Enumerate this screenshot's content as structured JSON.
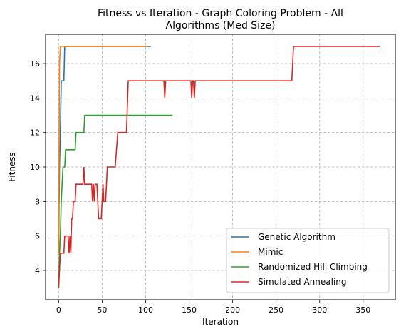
{
  "chart_data": {
    "type": "line",
    "title": "Fitness vs Iteration - Graph Coloring Problem - All",
    "subtitle": "Algorithms (Med Size)",
    "xlabel": "Iteration",
    "ylabel": "Fitness",
    "xlim": [
      -15,
      387
    ],
    "ylim": [
      2.3,
      17.7
    ],
    "xticks": [
      0,
      50,
      100,
      150,
      200,
      250,
      300,
      350
    ],
    "yticks": [
      4,
      6,
      8,
      10,
      12,
      14,
      16
    ],
    "grid": true,
    "legend_position": "lower-right",
    "series": [
      {
        "name": "Genetic Algorithm",
        "color": "#1f77b4",
        "x": [
          0,
          1,
          2,
          3,
          4,
          5,
          6,
          7,
          8,
          20,
          40,
          60,
          80,
          100,
          106
        ],
        "y": [
          5,
          10,
          12,
          15,
          15,
          15,
          15,
          17,
          17,
          17,
          17,
          17,
          17,
          17,
          17
        ]
      },
      {
        "name": "Mimic",
        "color": "#ff7f0e",
        "x": [
          0,
          1,
          2,
          3,
          10,
          30,
          50,
          70,
          90,
          102
        ],
        "y": [
          5,
          16,
          17,
          17,
          17,
          17,
          17,
          17,
          17,
          17
        ]
      },
      {
        "name": "Randomized Hill Climbing",
        "color": "#2ca02c",
        "x": [
          0,
          1,
          2,
          3,
          4,
          5,
          6,
          7,
          8,
          9,
          10,
          11,
          15,
          19,
          20,
          21,
          25,
          29,
          30,
          31,
          50,
          70,
          90,
          110,
          131
        ],
        "y": [
          3,
          5,
          6,
          8,
          9,
          10,
          10,
          10,
          11,
          11,
          11,
          11,
          11,
          11,
          12,
          12,
          12,
          12,
          13,
          13,
          13,
          13,
          13,
          13,
          13
        ],
        "step": true
      },
      {
        "name": "Simulated Annealing",
        "color": "#d62728",
        "x": [
          0,
          1,
          2,
          3,
          4,
          5,
          6,
          7,
          8,
          9,
          10,
          11,
          12,
          13,
          14,
          15,
          16,
          17,
          18,
          19,
          20,
          22,
          24,
          26,
          28,
          29,
          30,
          32,
          34,
          36,
          38,
          39,
          40,
          41,
          42,
          43,
          44,
          45,
          46,
          47,
          48,
          49,
          50,
          51,
          52,
          53,
          54,
          55,
          56,
          58,
          60,
          62,
          65,
          68,
          70,
          72,
          74,
          76,
          78,
          80,
          82,
          90,
          100,
          110,
          120,
          121,
          122,
          123,
          124,
          130,
          140,
          150,
          152,
          153,
          154,
          155,
          156,
          157,
          158,
          159,
          160,
          170,
          200,
          250,
          268,
          269,
          270,
          271,
          300,
          340,
          370
        ],
        "y": [
          3,
          4,
          5,
          5,
          5,
          5,
          5,
          6,
          6,
          6,
          6,
          6,
          5,
          6,
          5,
          7,
          7,
          8,
          8,
          8,
          9,
          9,
          9,
          9,
          9,
          10,
          9,
          9,
          9,
          9,
          9,
          8,
          9,
          8,
          9,
          9,
          9,
          8,
          7,
          7,
          7,
          7,
          8,
          9,
          8,
          8,
          8,
          9,
          10,
          10,
          10,
          10,
          10,
          12,
          12,
          12,
          12,
          12,
          12,
          15,
          15,
          15,
          15,
          15,
          15,
          15,
          14,
          15,
          15,
          15,
          15,
          15,
          15,
          14,
          15,
          15,
          14,
          15,
          15,
          15,
          15,
          15,
          15,
          15,
          15,
          16,
          17,
          17,
          17,
          17,
          17
        ],
        "step": true
      }
    ]
  }
}
